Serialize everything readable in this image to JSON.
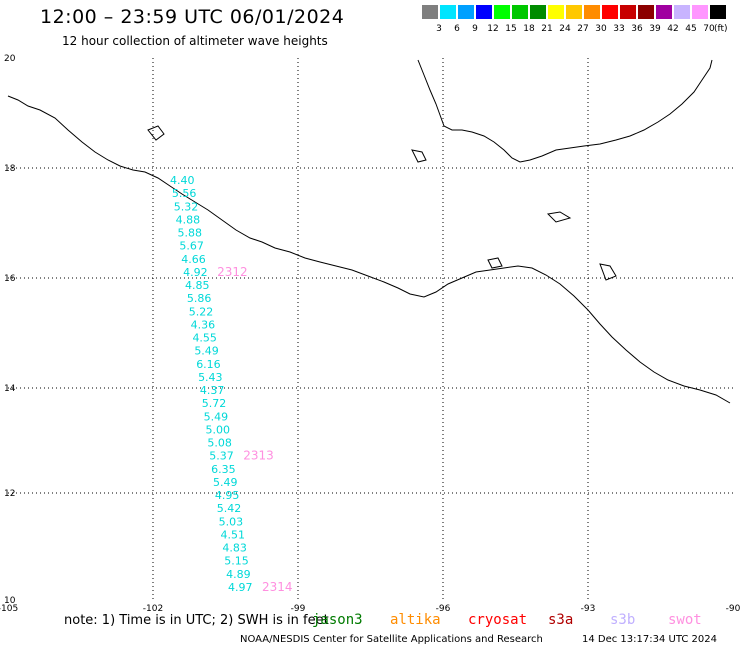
{
  "header": {
    "title": "12:00 – 23:59 UTC 06/01/2024",
    "subtitle": "12 hour collection of altimeter wave heights"
  },
  "legend": {
    "unit": "(ft)",
    "bins": [
      {
        "label": "3",
        "color": "#7f7f7f"
      },
      {
        "label": "6",
        "color": "#00e5ff"
      },
      {
        "label": "9",
        "color": "#00a0ff"
      },
      {
        "label": "12",
        "color": "#0000ff"
      },
      {
        "label": "15",
        "color": "#00ff00"
      },
      {
        "label": "18",
        "color": "#00c800"
      },
      {
        "label": "21",
        "color": "#008c00"
      },
      {
        "label": "24",
        "color": "#ffff00"
      },
      {
        "label": "27",
        "color": "#ffc800"
      },
      {
        "label": "30",
        "color": "#ff8c00"
      },
      {
        "label": "33",
        "color": "#ff0000"
      },
      {
        "label": "36",
        "color": "#c80000"
      },
      {
        "label": "39",
        "color": "#8c0000"
      },
      {
        "label": "42",
        "color": "#a000a0"
      },
      {
        "label": "45",
        "color": "#c8b4ff"
      },
      {
        "label": "70",
        "color": "#ff96ff"
      },
      {
        "label": "",
        "color": "#000000"
      }
    ]
  },
  "axes": {
    "lon_ticks": [
      "-105",
      "-102",
      "-99",
      "-96",
      "-93",
      "-90"
    ],
    "lat_ticks": [
      "20",
      "18",
      "16",
      "14",
      "12",
      "10"
    ]
  },
  "track": {
    "color": "#00d8d8",
    "values": [
      "4.40",
      "5.56",
      "5.32",
      "4.88",
      "5.88",
      "5.67",
      "4.66",
      "4.92",
      "4.85",
      "5.86",
      "5.22",
      "4.36",
      "4.55",
      "5.49",
      "6.16",
      "5.43",
      "4.37",
      "5.72",
      "5.49",
      "5.00",
      "5.08",
      "5.37",
      "6.35",
      "5.49",
      "4.95",
      "5.42",
      "5.03",
      "4.51",
      "4.83",
      "5.15",
      "4.89",
      "4.97"
    ],
    "hour_labels": [
      {
        "text": "2312",
        "after_index": 7
      },
      {
        "text": "2313",
        "after_index": 21
      },
      {
        "text": "2314",
        "after_index": 31
      }
    ],
    "hour_color": "#ff90e0"
  },
  "footer": {
    "note": "note: 1) Time is in UTC; 2) SWH is in feet",
    "satellites": [
      {
        "name": "jason3",
        "color": "#007a00"
      },
      {
        "name": "altika",
        "color": "#ff8c00"
      },
      {
        "name": "cryosat",
        "color": "#ff0000"
      },
      {
        "name": "s3a",
        "color": "#b00000"
      },
      {
        "name": "s3b",
        "color": "#c0b0ff"
      },
      {
        "name": "swot",
        "color": "#ff90e0"
      }
    ],
    "credit": "NOAA/NESDIS Center for Satellite Applications and Research",
    "timestamp": "14 Dec 13:17:34 UTC 2024"
  }
}
